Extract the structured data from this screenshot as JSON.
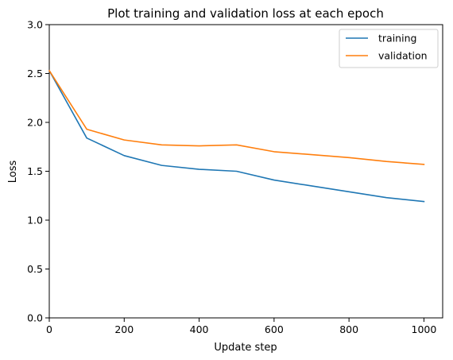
{
  "chart_data": {
    "type": "line",
    "title": "Plot training and validation loss at each epoch",
    "xlabel": "Update step",
    "ylabel": "Loss",
    "xlim": [
      0,
      1050
    ],
    "ylim": [
      0.0,
      3.0
    ],
    "x_ticks": [
      0,
      200,
      400,
      600,
      800,
      1000
    ],
    "x_tick_labels": [
      "0",
      "200",
      "400",
      "600",
      "800",
      "1000"
    ],
    "y_ticks": [
      0.0,
      0.5,
      1.0,
      1.5,
      2.0,
      2.5,
      3.0
    ],
    "y_tick_labels": [
      "0.0",
      "0.5",
      "1.0",
      "1.5",
      "2.0",
      "2.5",
      "3.0"
    ],
    "grid": false,
    "legend_position": "top-right",
    "x": [
      0,
      100,
      200,
      300,
      400,
      500,
      600,
      700,
      800,
      900,
      1000
    ],
    "series": [
      {
        "name": "training",
        "color": "#1f77b4",
        "values": [
          2.53,
          1.84,
          1.66,
          1.56,
          1.52,
          1.5,
          1.41,
          1.35,
          1.29,
          1.23,
          1.19
        ]
      },
      {
        "name": "validation",
        "color": "#ff7f0e",
        "values": [
          2.53,
          1.93,
          1.82,
          1.77,
          1.76,
          1.77,
          1.7,
          1.67,
          1.64,
          1.6,
          1.57
        ]
      }
    ]
  }
}
